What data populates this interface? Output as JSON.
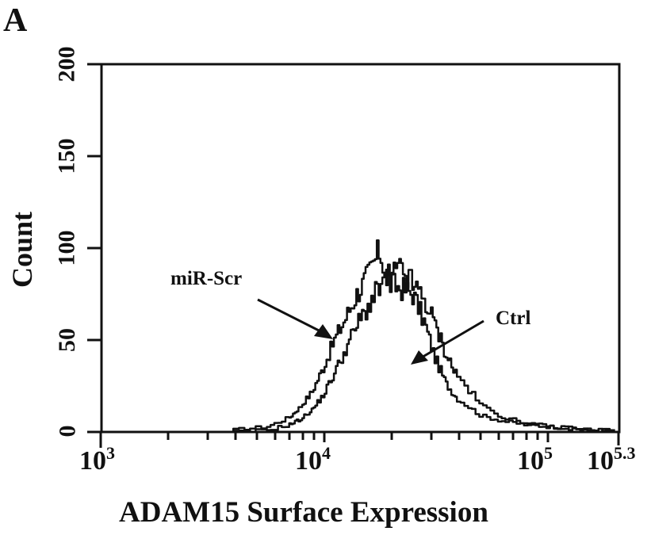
{
  "figure": {
    "panel_label": "A",
    "ylabel": "Count",
    "xlabel": "ADAM15 Surface Expression",
    "annotations": {
      "miR": "miR-Scr",
      "ctrl": "Ctrl"
    },
    "yticks": [
      "0",
      "50",
      "100",
      "150",
      "200"
    ],
    "xticks": [
      {
        "base": "10",
        "exp": "3"
      },
      {
        "base": "10",
        "exp": "4"
      },
      {
        "base": "10",
        "exp": "5"
      },
      {
        "base": "10",
        "exp": "5.3"
      }
    ]
  },
  "chart_data": {
    "type": "line",
    "title": "",
    "xlabel": "ADAM15 Surface Expression",
    "ylabel": "Count",
    "xscale": "log",
    "xlim": [
      1000,
      199526
    ],
    "ylim": [
      0,
      200
    ],
    "x_tick_labels": [
      "10^3",
      "10^4",
      "10^5",
      "10^5.3"
    ],
    "y_tick_labels": [
      0,
      50,
      100,
      150,
      200
    ],
    "grid": false,
    "legend": "none (arrow annotations)",
    "annotations": [
      {
        "text": "miR-Scr",
        "points_to": "left (shifted-lower) histogram"
      },
      {
        "text": "Ctrl",
        "points_to": "right histogram"
      }
    ],
    "x_log10": [
      3.6,
      3.75,
      3.85,
      3.9,
      3.95,
      4.0,
      4.05,
      4.1,
      4.15,
      4.2,
      4.25,
      4.3,
      4.35,
      4.4,
      4.45,
      4.5,
      4.55,
      4.6,
      4.7,
      4.8,
      4.9,
      5.0,
      5.1,
      5.2,
      5.3
    ],
    "series": [
      {
        "name": "miR-Scr",
        "values": [
          1,
          3,
          8,
          14,
          22,
          35,
          50,
          62,
          75,
          85,
          98,
          80,
          78,
          75,
          60,
          40,
          26,
          18,
          9,
          6,
          4,
          3,
          2,
          1,
          1
        ]
      },
      {
        "name": "Ctrl",
        "values": [
          0,
          1,
          4,
          7,
          12,
          20,
          32,
          45,
          58,
          68,
          78,
          85,
          88,
          80,
          72,
          58,
          42,
          30,
          15,
          8,
          5,
          3,
          2,
          1,
          1
        ]
      }
    ]
  }
}
